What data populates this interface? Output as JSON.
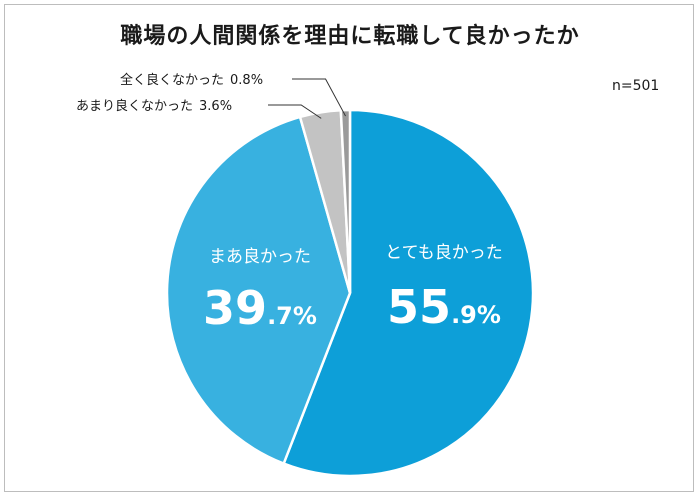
{
  "chart_data": {
    "type": "pie",
    "title": "職場の人間関係を理由に転職して良かったか",
    "note": "n=501",
    "slices": [
      {
        "label": "とても良かった",
        "value": 55.9,
        "value_int": "55",
        "value_dec": ".9%",
        "color": "#0d9fd8"
      },
      {
        "label": "まあ良かった",
        "value": 39.7,
        "value_int": "39",
        "value_dec": ".7%",
        "color": "#38b1e0"
      },
      {
        "label": "あまり良くなかった",
        "value": 3.6,
        "value_text": "3.6%",
        "color": "#c3c3c3"
      },
      {
        "label": "全く良くなかった",
        "value": 0.8,
        "value_text": "0.8%",
        "color": "#9a9a9a"
      }
    ]
  }
}
